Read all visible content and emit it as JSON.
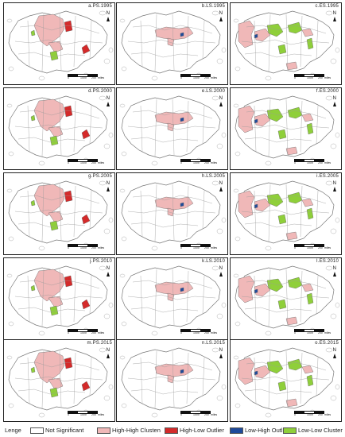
{
  "panels": [
    {
      "label": "a.PS.1995"
    },
    {
      "label": "b.LS.1995"
    },
    {
      "label": "c.ES.1995"
    },
    {
      "label": "d.PS.2000"
    },
    {
      "label": "e.LS.2000"
    },
    {
      "label": "f.ES.2000"
    },
    {
      "label": "g.PS.2005"
    },
    {
      "label": "h.LS.2005"
    },
    {
      "label": "i.ES.2005"
    },
    {
      "label": "j.PS.2010"
    },
    {
      "label": "k.LS.2010"
    },
    {
      "label": "l.ES.2010"
    },
    {
      "label": "m.PS.2015"
    },
    {
      "label": "n.LS.2015"
    },
    {
      "label": "o.ES.2015"
    }
  ],
  "north_label": "N",
  "scale": {
    "ticks": [
      "0",
      "1000",
      "200"
    ],
    "unit": "miles"
  },
  "legend": {
    "title": "Lenge",
    "items": [
      {
        "label": "Not Significant",
        "color": "#ffffff"
      },
      {
        "label": "High-High Clusten",
        "color": "#f0b8b8"
      },
      {
        "label": "High-Low Outlier",
        "color": "#d42a2a"
      },
      {
        "label": "Low-High Outlier",
        "color": "#1f4a9a"
      },
      {
        "label": "Low-Low Cluster",
        "color": "#8fcf3a"
      }
    ]
  }
}
